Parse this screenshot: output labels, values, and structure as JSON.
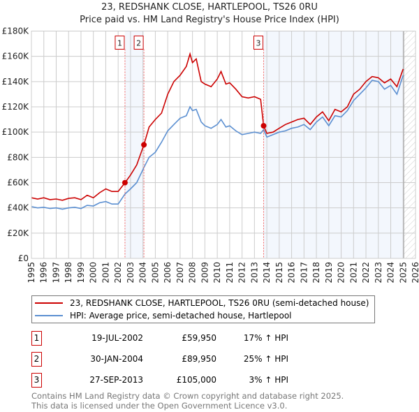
{
  "chart_data": {
    "type": "line",
    "title": "23, REDSHANK CLOSE, HARTLEPOOL, TS26 0RU",
    "subtitle": "Price paid vs. HM Land Registry's House Price Index (HPI)",
    "xlabel": "",
    "ylabel": "",
    "xlim": [
      1995,
      2026
    ],
    "ylim": [
      0,
      180000
    ],
    "yticks": [
      0,
      20000,
      40000,
      60000,
      80000,
      100000,
      120000,
      140000,
      160000,
      180000
    ],
    "ytick_labels": [
      "£0",
      "£20K",
      "£40K",
      "£60K",
      "£80K",
      "£100K",
      "£120K",
      "£140K",
      "£160K",
      "£180K"
    ],
    "xticks": [
      1995,
      1996,
      1997,
      1998,
      1999,
      2000,
      2001,
      2002,
      2003,
      2004,
      2005,
      2006,
      2007,
      2008,
      2009,
      2010,
      2011,
      2012,
      2013,
      2014,
      2015,
      2016,
      2017,
      2018,
      2019,
      2020,
      2021,
      2022,
      2023,
      2024,
      2025,
      2026
    ],
    "grid": true,
    "legend_placement": "below",
    "series": [
      {
        "name": "23, REDSHANK CLOSE, HARTLEPOOL, TS26 0RU (semi-detached house)",
        "color": "#cc0000",
        "x": [
          1995,
          1995.5,
          1996,
          1996.5,
          1997,
          1997.5,
          1998,
          1998.5,
          1999,
          1999.5,
          2000,
          2000.5,
          2001,
          2001.5,
          2002,
          2002.55,
          2003,
          2003.5,
          2004.08,
          2004.5,
          2005,
          2005.5,
          2006,
          2006.5,
          2007,
          2007.5,
          2007.8,
          2008,
          2008.3,
          2008.7,
          2009,
          2009.5,
          2010,
          2010.3,
          2010.7,
          2011,
          2011.5,
          2012,
          2012.5,
          2013,
          2013.5,
          2013.74,
          2014,
          2014.5,
          2015,
          2015.5,
          2016,
          2016.5,
          2017,
          2017.5,
          2018,
          2018.5,
          2019,
          2019.5,
          2020,
          2020.5,
          2021,
          2021.5,
          2022,
          2022.5,
          2023,
          2023.5,
          2024,
          2024.5,
          2025
        ],
        "y": [
          48000,
          47000,
          48000,
          46500,
          47000,
          46000,
          47500,
          48000,
          46500,
          50000,
          48000,
          52000,
          55000,
          53000,
          53000,
          59950,
          66000,
          74000,
          89950,
          104000,
          110000,
          115000,
          130000,
          140000,
          145000,
          152000,
          162000,
          155000,
          158000,
          140000,
          138000,
          136000,
          142000,
          148000,
          138000,
          139000,
          134000,
          128000,
          127000,
          128000,
          126000,
          105000,
          99000,
          100000,
          103000,
          106000,
          108000,
          110000,
          111000,
          106000,
          112000,
          116000,
          109000,
          118000,
          116000,
          120000,
          130000,
          134000,
          140000,
          144000,
          143000,
          139000,
          142000,
          136000,
          150000
        ]
      },
      {
        "name": "HPI: Average price, semi-detached house, Hartlepool",
        "color": "#5b8fd1",
        "x": [
          1995,
          1995.5,
          1996,
          1996.5,
          1997,
          1997.5,
          1998,
          1998.5,
          1999,
          1999.5,
          2000,
          2000.5,
          2001,
          2001.5,
          2002,
          2002.55,
          2003,
          2003.5,
          2004.08,
          2004.5,
          2005,
          2005.5,
          2006,
          2006.5,
          2007,
          2007.5,
          2007.8,
          2008,
          2008.3,
          2008.7,
          2009,
          2009.5,
          2010,
          2010.3,
          2010.7,
          2011,
          2011.5,
          2012,
          2012.5,
          2013,
          2013.5,
          2013.74,
          2014,
          2014.5,
          2015,
          2015.5,
          2016,
          2016.5,
          2017,
          2017.5,
          2018,
          2018.5,
          2019,
          2019.5,
          2020,
          2020.5,
          2021,
          2021.5,
          2022,
          2022.5,
          2023,
          2023.5,
          2024,
          2024.5,
          2025
        ],
        "y": [
          41000,
          40000,
          40500,
          39500,
          40000,
          39000,
          40000,
          40500,
          39500,
          42000,
          41500,
          44000,
          45000,
          43000,
          43000,
          51000,
          55000,
          60000,
          72000,
          80000,
          84000,
          92000,
          101000,
          106000,
          111000,
          113000,
          120000,
          117000,
          118000,
          108000,
          105000,
          103000,
          106000,
          110000,
          104000,
          105000,
          101000,
          98000,
          99000,
          100000,
          99000,
          102000,
          96000,
          98000,
          100000,
          101000,
          103000,
          104000,
          106000,
          102000,
          108000,
          112000,
          105000,
          113000,
          112000,
          117000,
          125000,
          130000,
          135000,
          141000,
          140000,
          134000,
          137000,
          130000,
          145000
        ]
      }
    ],
    "sales": [
      {
        "label": "1",
        "x": 2002.55,
        "y": 59950
      },
      {
        "label": "2",
        "x": 2004.08,
        "y": 89950
      },
      {
        "label": "3",
        "x": 2013.74,
        "y": 105000
      }
    ],
    "data_end": 2025.05
  },
  "table": [
    {
      "num": "1",
      "date": "19-JUL-2002",
      "price": "£59,950",
      "hpi": "17% ↑ HPI"
    },
    {
      "num": "2",
      "date": "30-JAN-2004",
      "price": "£89,950",
      "hpi": "25% ↑ HPI"
    },
    {
      "num": "3",
      "date": "27-SEP-2013",
      "price": "£105,000",
      "hpi": "3% ↑ HPI"
    }
  ],
  "footer": {
    "line1": "Contains HM Land Registry data © Crown copyright and database right 2025.",
    "line2": "This data is licensed under the Open Government Licence v3.0."
  }
}
